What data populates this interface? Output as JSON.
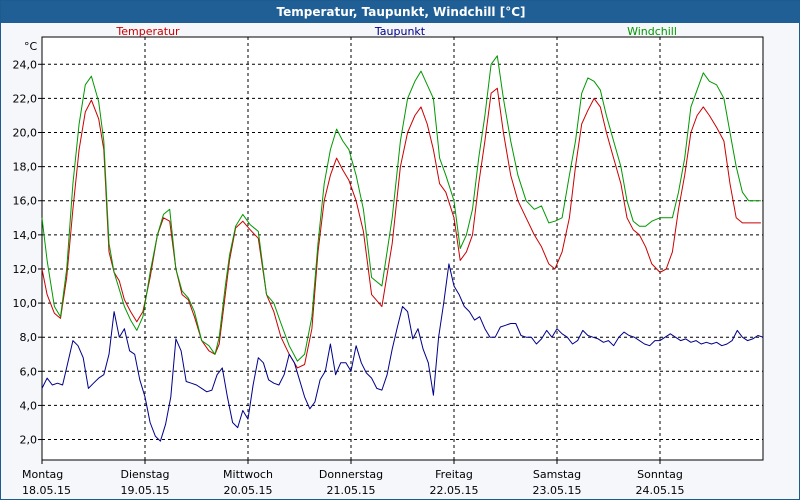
{
  "title": "Temperatur, Taupunkt, Windchill [°C]",
  "chart_data": {
    "type": "line",
    "unit_label": "°C",
    "ylim": [
      0.8,
      25.6
    ],
    "y_ticks": [
      "2,0",
      "4,0",
      "6,0",
      "8,0",
      "10,0",
      "12,0",
      "14,0",
      "16,0",
      "18,0",
      "20,0",
      "22,0",
      "24,0"
    ],
    "y_tick_values": [
      2,
      4,
      6,
      8,
      10,
      12,
      14,
      16,
      18,
      20,
      22,
      24
    ],
    "x_range_days": [
      0,
      7
    ],
    "x_ticks": [
      {
        "day": "Montag",
        "date": "18.05.15",
        "pos": 0
      },
      {
        "day": "Dienstag",
        "date": "19.05.15",
        "pos": 1
      },
      {
        "day": "Mittwoch",
        "date": "20.05.15",
        "pos": 2
      },
      {
        "day": "Donnerstag",
        "date": "21.05.15",
        "pos": 3
      },
      {
        "day": "Freitag",
        "date": "22.05.15",
        "pos": 4
      },
      {
        "day": "Samstag",
        "date": "23.05.15",
        "pos": 5
      },
      {
        "day": "Sonntag",
        "date": "24.05.15",
        "pos": 6
      }
    ],
    "grid": true,
    "series": [
      {
        "name": "Temperatur",
        "color": "#cc0000",
        "x": [
          0.0,
          0.05,
          0.12,
          0.18,
          0.24,
          0.3,
          0.36,
          0.42,
          0.48,
          0.55,
          0.6,
          0.65,
          0.7,
          0.75,
          0.8,
          0.86,
          0.92,
          0.98,
          1.05,
          1.12,
          1.18,
          1.24,
          1.3,
          1.36,
          1.42,
          1.48,
          1.55,
          1.62,
          1.68,
          1.72,
          1.78,
          1.82,
          1.88,
          1.95,
          2.02,
          2.1,
          2.18,
          2.25,
          2.32,
          2.4,
          2.48,
          2.55,
          2.62,
          2.68,
          2.74,
          2.8,
          2.86,
          2.92,
          2.98,
          3.05,
          3.12,
          3.2,
          3.3,
          3.4,
          3.48,
          3.55,
          3.62,
          3.68,
          3.74,
          3.8,
          3.86,
          3.92,
          4.0,
          4.06,
          4.12,
          4.18,
          4.24,
          4.3,
          4.36,
          4.42,
          4.48,
          4.55,
          4.62,
          4.7,
          4.78,
          4.85,
          4.92,
          4.98,
          5.05,
          5.12,
          5.18,
          5.24,
          5.3,
          5.36,
          5.42,
          5.48,
          5.55,
          5.62,
          5.68,
          5.74,
          5.8,
          5.86,
          5.92,
          6.0,
          6.06,
          6.12,
          6.18,
          6.24,
          6.3,
          6.36,
          6.42,
          6.48,
          6.55,
          6.62,
          6.68,
          6.74,
          6.8,
          6.86,
          6.92,
          6.98
        ],
        "values": [
          12.0,
          10.5,
          9.4,
          9.1,
          11.5,
          15.5,
          19.0,
          21.2,
          21.9,
          20.8,
          19.0,
          13.0,
          11.8,
          11.3,
          10.2,
          9.5,
          8.9,
          9.5,
          11.5,
          14.0,
          15.0,
          14.8,
          12.0,
          10.5,
          10.2,
          9.2,
          7.8,
          7.2,
          7.0,
          7.6,
          10.5,
          12.5,
          14.4,
          14.8,
          14.3,
          13.8,
          10.5,
          9.5,
          8.0,
          7.0,
          6.2,
          6.4,
          8.5,
          13.0,
          16.0,
          17.5,
          18.5,
          17.8,
          17.2,
          16.0,
          14.2,
          10.5,
          9.8,
          13.5,
          18.0,
          20.0,
          21.0,
          21.5,
          20.5,
          19.0,
          17.0,
          16.5,
          15.0,
          12.5,
          13.0,
          14.0,
          17.0,
          19.5,
          22.3,
          22.6,
          20.0,
          17.5,
          16.0,
          15.0,
          14.0,
          13.3,
          12.3,
          12.0,
          13.0,
          15.0,
          18.0,
          20.5,
          21.3,
          22.0,
          21.5,
          20.0,
          18.5,
          17.0,
          15.0,
          14.3,
          14.0,
          13.3,
          12.3,
          11.8,
          12.0,
          13.0,
          15.5,
          17.5,
          20.0,
          21.0,
          21.5,
          21.0,
          20.3,
          19.5,
          17.0,
          15.0,
          14.7,
          14.7,
          14.7,
          14.7
        ]
      },
      {
        "name": "Taupunkt",
        "color": "#00008b",
        "x": [
          0.0,
          0.05,
          0.1,
          0.15,
          0.2,
          0.25,
          0.3,
          0.35,
          0.4,
          0.45,
          0.5,
          0.55,
          0.6,
          0.65,
          0.7,
          0.75,
          0.8,
          0.85,
          0.9,
          0.95,
          1.0,
          1.05,
          1.1,
          1.15,
          1.2,
          1.25,
          1.3,
          1.35,
          1.4,
          1.45,
          1.5,
          1.55,
          1.6,
          1.65,
          1.7,
          1.75,
          1.8,
          1.85,
          1.9,
          1.95,
          2.0,
          2.05,
          2.1,
          2.15,
          2.2,
          2.25,
          2.3,
          2.35,
          2.4,
          2.45,
          2.5,
          2.55,
          2.6,
          2.65,
          2.7,
          2.75,
          2.8,
          2.85,
          2.9,
          2.95,
          3.0,
          3.05,
          3.1,
          3.15,
          3.2,
          3.25,
          3.3,
          3.35,
          3.4,
          3.45,
          3.5,
          3.55,
          3.6,
          3.65,
          3.7,
          3.75,
          3.8,
          3.85,
          3.9,
          3.95,
          4.0,
          4.05,
          4.1,
          4.15,
          4.2,
          4.25,
          4.3,
          4.35,
          4.4,
          4.45,
          4.5,
          4.55,
          4.6,
          4.65,
          4.7,
          4.75,
          4.8,
          4.85,
          4.9,
          4.95,
          5.0,
          5.05,
          5.1,
          5.15,
          5.2,
          5.25,
          5.3,
          5.35,
          5.4,
          5.45,
          5.5,
          5.55,
          5.6,
          5.65,
          5.7,
          5.75,
          5.8,
          5.85,
          5.9,
          5.95,
          6.0,
          6.05,
          6.1,
          6.15,
          6.2,
          6.25,
          6.3,
          6.35,
          6.4,
          6.45,
          6.5,
          6.55,
          6.6,
          6.65,
          6.7,
          6.75,
          6.8,
          6.85,
          6.9,
          6.95,
          7.0
        ],
        "values": [
          5.0,
          5.6,
          5.2,
          5.3,
          5.2,
          6.5,
          7.8,
          7.5,
          6.8,
          5.0,
          5.3,
          5.6,
          5.8,
          7.0,
          9.5,
          8.0,
          8.5,
          7.2,
          7.0,
          5.5,
          4.5,
          3.0,
          2.2,
          1.9,
          2.9,
          4.5,
          7.9,
          7.2,
          5.4,
          5.3,
          5.2,
          5.0,
          4.8,
          4.9,
          5.8,
          6.2,
          4.5,
          3.0,
          2.7,
          3.7,
          3.2,
          5.2,
          6.8,
          6.5,
          5.5,
          5.3,
          5.2,
          5.8,
          7.0,
          6.5,
          5.5,
          4.5,
          3.8,
          4.2,
          5.5,
          6.0,
          7.6,
          5.8,
          6.5,
          6.5,
          6.0,
          7.5,
          6.5,
          5.9,
          5.6,
          5.0,
          4.9,
          5.8,
          7.3,
          8.6,
          9.8,
          9.5,
          7.9,
          8.5,
          7.3,
          6.5,
          4.6,
          8.0,
          10.0,
          12.3,
          11.0,
          10.5,
          9.8,
          9.5,
          9.0,
          9.2,
          8.5,
          8.0,
          8.0,
          8.6,
          8.7,
          8.8,
          8.8,
          8.1,
          8.0,
          8.0,
          7.6,
          7.9,
          8.4,
          8.0,
          8.5,
          8.2,
          8.0,
          7.6,
          7.8,
          8.4,
          8.1,
          8.0,
          7.9,
          7.7,
          7.8,
          7.5,
          8.0,
          8.3,
          8.1,
          8.0,
          7.8,
          7.6,
          7.5,
          7.8,
          7.8,
          8.0,
          8.2,
          8.0,
          7.8,
          7.9,
          7.7,
          7.8,
          7.6,
          7.7,
          7.6,
          7.7,
          7.5,
          7.6,
          7.8,
          8.4,
          8.0,
          7.8,
          7.9,
          8.1,
          8.0
        ]
      },
      {
        "name": "Windchill",
        "color": "#009900",
        "x": [
          0.0,
          0.05,
          0.12,
          0.18,
          0.24,
          0.3,
          0.36,
          0.42,
          0.48,
          0.55,
          0.6,
          0.65,
          0.7,
          0.75,
          0.8,
          0.86,
          0.92,
          0.98,
          1.05,
          1.12,
          1.18,
          1.24,
          1.3,
          1.36,
          1.42,
          1.48,
          1.55,
          1.62,
          1.68,
          1.72,
          1.78,
          1.82,
          1.88,
          1.95,
          2.02,
          2.1,
          2.18,
          2.25,
          2.32,
          2.4,
          2.48,
          2.55,
          2.62,
          2.68,
          2.74,
          2.8,
          2.86,
          2.92,
          2.98,
          3.05,
          3.12,
          3.2,
          3.3,
          3.4,
          3.48,
          3.55,
          3.62,
          3.68,
          3.74,
          3.8,
          3.86,
          3.92,
          4.0,
          4.06,
          4.12,
          4.18,
          4.24,
          4.3,
          4.36,
          4.42,
          4.48,
          4.55,
          4.62,
          4.7,
          4.78,
          4.85,
          4.92,
          4.98,
          5.05,
          5.12,
          5.18,
          5.24,
          5.3,
          5.36,
          5.42,
          5.48,
          5.55,
          5.62,
          5.68,
          5.74,
          5.8,
          5.86,
          5.92,
          6.0,
          6.06,
          6.12,
          6.18,
          6.24,
          6.3,
          6.36,
          6.42,
          6.48,
          6.55,
          6.62,
          6.68,
          6.74,
          6.8,
          6.86,
          6.92,
          6.98
        ],
        "values": [
          15.0,
          12.5,
          9.8,
          9.2,
          12.0,
          17.0,
          20.5,
          22.8,
          23.3,
          21.8,
          19.5,
          13.5,
          11.8,
          10.8,
          9.8,
          9.0,
          8.4,
          9.2,
          11.8,
          14.0,
          15.2,
          15.5,
          12.0,
          10.7,
          10.3,
          9.5,
          7.8,
          7.5,
          7.0,
          8.0,
          11.0,
          12.8,
          14.5,
          15.2,
          14.6,
          14.2,
          10.5,
          10.0,
          8.8,
          7.5,
          6.6,
          7.0,
          9.2,
          13.5,
          17.0,
          19.0,
          20.2,
          19.5,
          19.0,
          17.5,
          15.5,
          11.5,
          11.0,
          15.0,
          19.5,
          22.0,
          23.0,
          23.6,
          22.8,
          22.0,
          18.5,
          17.5,
          16.0,
          13.2,
          14.0,
          15.5,
          18.5,
          21.0,
          24.0,
          24.5,
          22.0,
          19.5,
          17.5,
          16.0,
          15.5,
          15.7,
          14.7,
          14.8,
          15.0,
          17.5,
          19.5,
          22.3,
          23.2,
          23.0,
          22.5,
          21.0,
          19.5,
          18.0,
          16.0,
          14.8,
          14.5,
          14.5,
          14.8,
          15.0,
          15.0,
          15.0,
          16.5,
          18.5,
          21.5,
          22.5,
          23.5,
          23.0,
          22.8,
          22.0,
          20.0,
          18.0,
          16.5,
          16.0,
          16.0,
          16.0
        ]
      }
    ]
  }
}
